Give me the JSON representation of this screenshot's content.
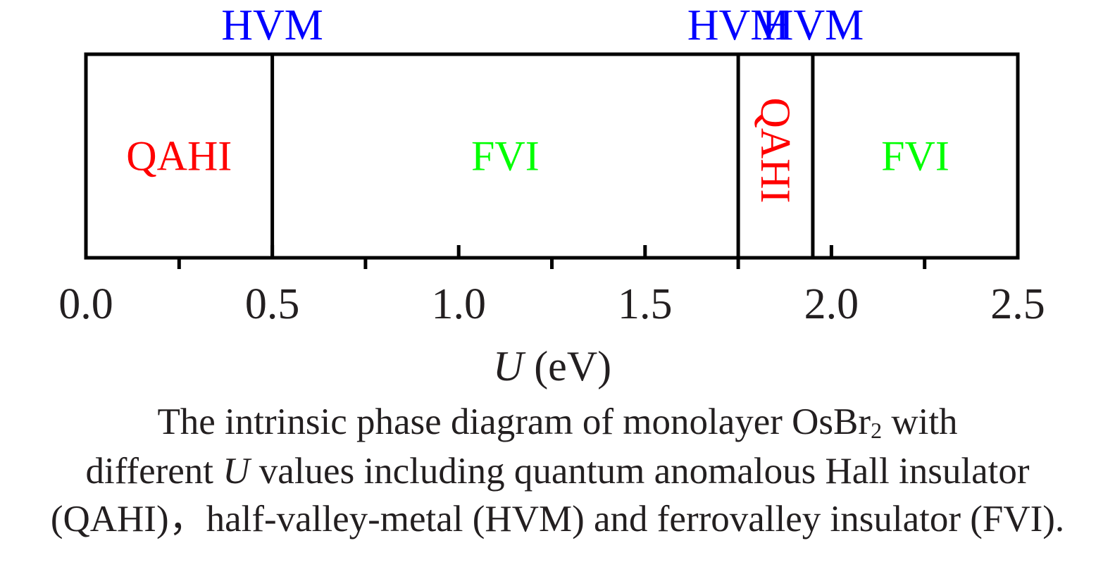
{
  "chart_data": {
    "type": "phase-diagram",
    "xlabel_var": "U",
    "xlabel_unit": " (eV)",
    "xlim": [
      0.0,
      2.5
    ],
    "major_ticks": [
      {
        "value": 0.0,
        "label": "0.0"
      },
      {
        "value": 0.5,
        "label": "0.5"
      },
      {
        "value": 1.0,
        "label": "1.0"
      },
      {
        "value": 1.5,
        "label": "1.5"
      },
      {
        "value": 2.0,
        "label": "2.0"
      },
      {
        "value": 2.5,
        "label": "2.5"
      }
    ],
    "minor_ticks": [
      0.25,
      0.75,
      1.25,
      1.75,
      2.25
    ],
    "regions": [
      {
        "label": "QAHI",
        "from": 0.0,
        "to": 0.5,
        "color": "#ff0000",
        "vertical": false
      },
      {
        "label": "FVI",
        "from": 0.5,
        "to": 1.75,
        "color": "#00ff00",
        "vertical": false
      },
      {
        "label": "QAHI",
        "from": 1.75,
        "to": 1.95,
        "color": "#ff0000",
        "vertical": true
      },
      {
        "label": "FVI",
        "from": 1.95,
        "to": 2.5,
        "color": "#00ff00",
        "vertical": false
      }
    ],
    "boundaries": [
      {
        "value": 0.5,
        "label": "HVM"
      },
      {
        "value": 1.75,
        "label": "HVM"
      },
      {
        "value": 1.95,
        "label": "HVM"
      }
    ],
    "boundary_label_color": "#0000ff"
  },
  "caption": {
    "line1_pre": "The intrinsic phase diagram of monolayer OsBr",
    "line1_sub": "2",
    "line1_post": " with",
    "line2_pre": "different ",
    "line2_var": "U",
    "line2_post": " values including quantum anomalous Hall insulator",
    "line3": "(QAHI)，half-valley-metal (HVM) and ferrovalley insulator (FVI)."
  }
}
